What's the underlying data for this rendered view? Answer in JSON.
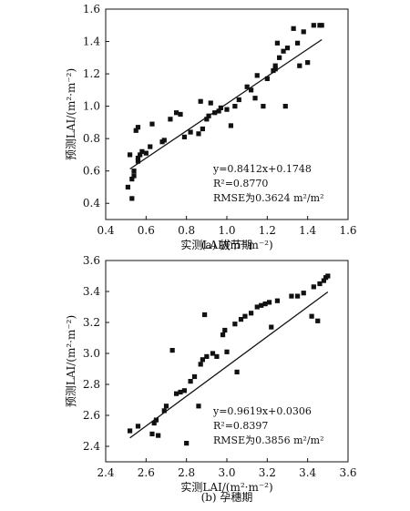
{
  "chart_data": [
    {
      "type": "scatter",
      "panel": "a",
      "xlabel": "实测LAI/(m²·m⁻²)",
      "ylabel": "预测LAI/(m²·m⁻²)",
      "xlim": [
        0.4,
        1.6
      ],
      "ylim": [
        0.3,
        1.6
      ],
      "xticks": [
        "0.4",
        "0.6",
        "0.8",
        "1.0",
        "1.2",
        "1.4",
        "1.6"
      ],
      "yticks": [
        "0.4",
        "0.6",
        "0.8",
        "1.0",
        "1.2",
        "1.4",
        "1.6"
      ],
      "caption": "(a) 拔节期",
      "annotations": [
        "y=0.8412x+0.1748",
        "R²=0.8770",
        "RMSE为0.3624 m²/m²"
      ],
      "fit": {
        "slope": 0.8412,
        "intercept": 0.1748,
        "x_range": [
          0.52,
          1.47
        ]
      },
      "points": [
        [
          0.51,
          0.5
        ],
        [
          0.52,
          0.7
        ],
        [
          0.53,
          0.55
        ],
        [
          0.54,
          0.57
        ],
        [
          0.54,
          0.6
        ],
        [
          0.53,
          0.43
        ],
        [
          0.56,
          0.66
        ],
        [
          0.56,
          0.68
        ],
        [
          0.57,
          0.7
        ],
        [
          0.58,
          0.72
        ],
        [
          0.55,
          0.85
        ],
        [
          0.56,
          0.87
        ],
        [
          0.6,
          0.71
        ],
        [
          0.62,
          0.75
        ],
        [
          0.63,
          0.89
        ],
        [
          0.68,
          0.78
        ],
        [
          0.69,
          0.79
        ],
        [
          0.72,
          0.92
        ],
        [
          0.75,
          0.96
        ],
        [
          0.77,
          0.95
        ],
        [
          0.79,
          0.81
        ],
        [
          0.82,
          0.84
        ],
        [
          0.86,
          0.83
        ],
        [
          0.87,
          1.03
        ],
        [
          0.88,
          0.86
        ],
        [
          0.9,
          0.92
        ],
        [
          0.91,
          0.94
        ],
        [
          0.92,
          1.02
        ],
        [
          0.94,
          0.96
        ],
        [
          0.96,
          0.97
        ],
        [
          0.97,
          0.99
        ],
        [
          1.0,
          0.98
        ],
        [
          1.02,
          0.88
        ],
        [
          1.04,
          1.0
        ],
        [
          1.06,
          1.04
        ],
        [
          1.1,
          1.12
        ],
        [
          1.12,
          1.1
        ],
        [
          1.14,
          1.05
        ],
        [
          1.15,
          1.19
        ],
        [
          1.18,
          1.0
        ],
        [
          1.2,
          1.17
        ],
        [
          1.23,
          1.22
        ],
        [
          1.24,
          1.25
        ],
        [
          1.25,
          1.39
        ],
        [
          1.26,
          1.3
        ],
        [
          1.28,
          1.34
        ],
        [
          1.29,
          1.0
        ],
        [
          1.3,
          1.36
        ],
        [
          1.33,
          1.48
        ],
        [
          1.35,
          1.39
        ],
        [
          1.36,
          1.25
        ],
        [
          1.38,
          1.46
        ],
        [
          1.4,
          1.27
        ],
        [
          1.43,
          1.5
        ],
        [
          1.46,
          1.5
        ],
        [
          1.47,
          1.5
        ],
        [
          1.24,
          1.23
        ]
      ]
    },
    {
      "type": "scatter",
      "panel": "b",
      "xlabel": "实测LAI/(m²·m⁻²)",
      "ylabel": "预测LAI/(m²·m⁻²)",
      "xlim": [
        2.4,
        3.6
      ],
      "ylim": [
        2.3,
        3.6
      ],
      "xticks": [
        "2.4",
        "2.6",
        "2.8",
        "3.0",
        "3.2",
        "3.4",
        "3.6"
      ],
      "yticks": [
        "2.4",
        "2.6",
        "2.8",
        "3.0",
        "3.2",
        "3.4",
        "3.6"
      ],
      "caption": "(b) 孕穗期",
      "annotations": [
        "y=0.9619x+0.0306",
        "R²=0.8397",
        "RMSE为0.3856 m²/m²"
      ],
      "fit": {
        "slope": 0.9619,
        "intercept": 0.0306,
        "x_range": [
          2.52,
          3.5
        ]
      },
      "points": [
        [
          2.52,
          2.5
        ],
        [
          2.56,
          2.53
        ],
        [
          2.63,
          2.48
        ],
        [
          2.64,
          2.55
        ],
        [
          2.65,
          2.57
        ],
        [
          2.66,
          2.47
        ],
        [
          2.69,
          2.63
        ],
        [
          2.7,
          2.66
        ],
        [
          2.73,
          3.02
        ],
        [
          2.75,
          2.74
        ],
        [
          2.77,
          2.75
        ],
        [
          2.79,
          2.76
        ],
        [
          2.8,
          2.42
        ],
        [
          2.82,
          2.82
        ],
        [
          2.84,
          2.85
        ],
        [
          2.86,
          2.66
        ],
        [
          2.87,
          2.93
        ],
        [
          2.88,
          2.96
        ],
        [
          2.89,
          3.25
        ],
        [
          2.9,
          2.98
        ],
        [
          2.93,
          3.0
        ],
        [
          2.95,
          2.98
        ],
        [
          2.98,
          3.12
        ],
        [
          2.99,
          3.15
        ],
        [
          3.0,
          3.01
        ],
        [
          3.04,
          3.19
        ],
        [
          3.05,
          2.88
        ],
        [
          3.07,
          3.22
        ],
        [
          3.09,
          3.24
        ],
        [
          3.12,
          3.26
        ],
        [
          3.15,
          3.3
        ],
        [
          3.17,
          3.31
        ],
        [
          3.19,
          3.32
        ],
        [
          3.21,
          3.33
        ],
        [
          3.22,
          3.17
        ],
        [
          3.25,
          3.34
        ],
        [
          3.32,
          3.37
        ],
        [
          3.35,
          3.37
        ],
        [
          3.38,
          3.39
        ],
        [
          3.42,
          3.24
        ],
        [
          3.43,
          3.43
        ],
        [
          3.45,
          3.21
        ],
        [
          3.46,
          3.45
        ],
        [
          3.48,
          3.47
        ],
        [
          3.49,
          3.49
        ],
        [
          3.5,
          3.5
        ]
      ]
    }
  ]
}
